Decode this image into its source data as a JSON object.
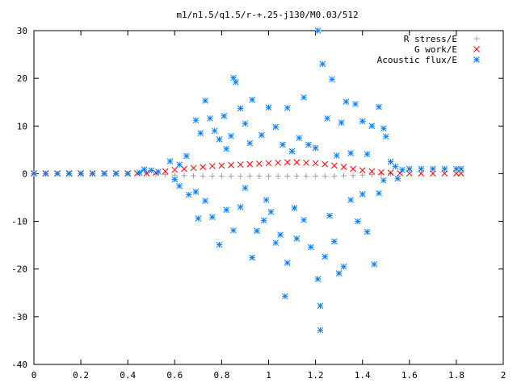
{
  "chart_data": {
    "type": "scatter",
    "title": "m1/n1.5/q1.5/r-+.25-j130/M0.03/512",
    "xlabel": "",
    "ylabel": "",
    "xlim": [
      0,
      2
    ],
    "ylim": [
      -40,
      30
    ],
    "xticks": [
      0,
      0.2,
      0.4,
      0.6,
      0.8,
      1,
      1.2,
      1.4,
      1.6,
      1.8,
      2
    ],
    "xtick_labels": [
      "0",
      "0.2",
      "0.4",
      "0.6",
      "0.8",
      "1",
      "1.2",
      "1.4",
      "1.6",
      "1.8",
      "2"
    ],
    "yticks": [
      -40,
      -30,
      -20,
      -10,
      0,
      10,
      20,
      30
    ],
    "ytick_labels": [
      "-40",
      "-30",
      "-20",
      "-10",
      "0",
      "10",
      "20",
      "30"
    ],
    "grid": false,
    "legend_position": "top-right",
    "series": [
      {
        "name": "R stress/E",
        "marker": "plus",
        "color": "#a0a0a0",
        "points": [
          [
            0.48,
            0.1
          ],
          [
            0.52,
            -0.1
          ],
          [
            0.56,
            -0.2
          ],
          [
            0.6,
            -0.3
          ],
          [
            0.64,
            -0.4
          ],
          [
            0.68,
            -0.45
          ],
          [
            0.72,
            -0.5
          ],
          [
            0.76,
            -0.5
          ],
          [
            0.8,
            -0.5
          ],
          [
            0.84,
            -0.5
          ],
          [
            0.88,
            -0.5
          ],
          [
            0.92,
            -0.5
          ],
          [
            0.96,
            -0.5
          ],
          [
            1.0,
            -0.5
          ],
          [
            1.04,
            -0.5
          ],
          [
            1.08,
            -0.5
          ],
          [
            1.12,
            -0.5
          ],
          [
            1.16,
            -0.5
          ],
          [
            1.2,
            -0.5
          ],
          [
            1.24,
            -0.5
          ],
          [
            1.28,
            -0.5
          ],
          [
            1.32,
            -0.45
          ],
          [
            1.36,
            -0.4
          ],
          [
            1.4,
            -0.3
          ],
          [
            1.44,
            -0.2
          ],
          [
            1.48,
            -0.1
          ],
          [
            1.52,
            0.0
          ]
        ]
      },
      {
        "name": "G work/E",
        "marker": "cross",
        "color": "#ff0000",
        "points": [
          [
            0.0,
            0.1
          ],
          [
            0.05,
            0.1
          ],
          [
            0.1,
            0.1
          ],
          [
            0.15,
            0.1
          ],
          [
            0.2,
            0.1
          ],
          [
            0.25,
            0.1
          ],
          [
            0.3,
            0.1
          ],
          [
            0.35,
            0.1
          ],
          [
            0.4,
            0.1
          ],
          [
            0.44,
            0.1
          ],
          [
            0.48,
            0.1
          ],
          [
            0.52,
            0.2
          ],
          [
            0.56,
            0.5
          ],
          [
            0.6,
            0.8
          ],
          [
            0.64,
            1.0
          ],
          [
            0.68,
            1.2
          ],
          [
            0.72,
            1.4
          ],
          [
            0.76,
            1.6
          ],
          [
            0.8,
            1.7
          ],
          [
            0.84,
            1.8
          ],
          [
            0.88,
            1.9
          ],
          [
            0.92,
            2.0
          ],
          [
            0.96,
            2.1
          ],
          [
            1.0,
            2.2
          ],
          [
            1.04,
            2.3
          ],
          [
            1.08,
            2.4
          ],
          [
            1.12,
            2.4
          ],
          [
            1.16,
            2.3
          ],
          [
            1.2,
            2.2
          ],
          [
            1.24,
            2.0
          ],
          [
            1.28,
            1.7
          ],
          [
            1.32,
            1.4
          ],
          [
            1.36,
            1.0
          ],
          [
            1.4,
            0.7
          ],
          [
            1.44,
            0.5
          ],
          [
            1.48,
            0.3
          ],
          [
            1.52,
            0.2
          ],
          [
            1.56,
            0.1
          ],
          [
            1.6,
            0.05
          ],
          [
            1.65,
            0.05
          ],
          [
            1.7,
            0.05
          ],
          [
            1.75,
            0.05
          ],
          [
            1.8,
            0.05
          ],
          [
            1.82,
            0.05
          ]
        ]
      },
      {
        "name": "Acoustic flux/E",
        "marker": "star",
        "color": "#0080ff",
        "points": [
          [
            0.0,
            0.0
          ],
          [
            0.05,
            0.0
          ],
          [
            0.1,
            0.0
          ],
          [
            0.15,
            0.0
          ],
          [
            0.2,
            0.0
          ],
          [
            0.25,
            0.0
          ],
          [
            0.3,
            0.0
          ],
          [
            0.35,
            0.0
          ],
          [
            0.4,
            0.0
          ],
          [
            0.45,
            0.2
          ],
          [
            0.47,
            0.9
          ],
          [
            0.5,
            0.7
          ],
          [
            0.53,
            0.4
          ],
          [
            0.58,
            2.6
          ],
          [
            0.62,
            1.9
          ],
          [
            0.65,
            3.7
          ],
          [
            0.6,
            -1.2
          ],
          [
            0.62,
            -2.6
          ],
          [
            0.66,
            -4.4
          ],
          [
            0.69,
            -3.8
          ],
          [
            0.71,
            8.5
          ],
          [
            0.75,
            11.6
          ],
          [
            0.79,
            7.2
          ],
          [
            0.82,
            5.2
          ],
          [
            0.85,
            20.1
          ],
          [
            0.86,
            19.2
          ],
          [
            0.88,
            13.7
          ],
          [
            0.9,
            10.5
          ],
          [
            0.92,
            6.4
          ],
          [
            0.93,
            15.5
          ],
          [
            0.97,
            8.1
          ],
          [
            0.69,
            11.2
          ],
          [
            0.73,
            15.3
          ],
          [
            0.77,
            9.0
          ],
          [
            0.81,
            12.1
          ],
          [
            0.84,
            7.9
          ],
          [
            0.7,
            -9.4
          ],
          [
            0.73,
            -5.7
          ],
          [
            0.76,
            -9.1
          ],
          [
            0.79,
            -14.9
          ],
          [
            0.82,
            -7.6
          ],
          [
            0.85,
            -11.9
          ],
          [
            0.88,
            -7.0
          ],
          [
            0.9,
            -3.0
          ],
          [
            0.93,
            -17.6
          ],
          [
            0.95,
            -12.0
          ],
          [
            0.98,
            -9.8
          ],
          [
            0.99,
            -5.5
          ],
          [
            1.01,
            -8.0
          ],
          [
            1.03,
            -14.5
          ],
          [
            1.05,
            -12.8
          ],
          [
            1.07,
            -25.7
          ],
          [
            1.08,
            -18.7
          ],
          [
            1.11,
            -7.2
          ],
          [
            1.12,
            -13.6
          ],
          [
            1.15,
            -9.7
          ],
          [
            1.18,
            -15.4
          ],
          [
            1.21,
            -22.1
          ],
          [
            1.22,
            -27.7
          ],
          [
            1.22,
            -32.8
          ],
          [
            1.24,
            -17.4
          ],
          [
            1.26,
            -8.8
          ],
          [
            1.28,
            -14.2
          ],
          [
            1.3,
            -20.9
          ],
          [
            1.32,
            -19.5
          ],
          [
            1.35,
            -5.5
          ],
          [
            1.38,
            -10.0
          ],
          [
            1.4,
            -4.3
          ],
          [
            1.42,
            -12.2
          ],
          [
            1.45,
            -19.0
          ],
          [
            1.47,
            -4.1
          ],
          [
            1.49,
            -1.4
          ],
          [
            1.0,
            13.9
          ],
          [
            1.03,
            9.8
          ],
          [
            1.06,
            6.1
          ],
          [
            1.08,
            13.8
          ],
          [
            1.1,
            4.7
          ],
          [
            1.13,
            7.5
          ],
          [
            1.15,
            16.0
          ],
          [
            1.17,
            6.1
          ],
          [
            1.2,
            5.4
          ],
          [
            1.21,
            30.0
          ],
          [
            1.23,
            23.0
          ],
          [
            1.25,
            11.6
          ],
          [
            1.27,
            19.8
          ],
          [
            1.29,
            3.8
          ],
          [
            1.31,
            10.7
          ],
          [
            1.33,
            15.1
          ],
          [
            1.35,
            4.3
          ],
          [
            1.37,
            14.6
          ],
          [
            1.4,
            11.0
          ],
          [
            1.42,
            4.1
          ],
          [
            1.44,
            10.0
          ],
          [
            1.47,
            14.0
          ],
          [
            1.49,
            9.5
          ],
          [
            1.5,
            7.8
          ],
          [
            1.52,
            2.5
          ],
          [
            1.54,
            1.5
          ],
          [
            1.55,
            -1.0
          ],
          [
            1.57,
            0.8
          ],
          [
            1.6,
            1.0
          ],
          [
            1.65,
            1.0
          ],
          [
            1.7,
            1.0
          ],
          [
            1.75,
            1.0
          ],
          [
            1.8,
            1.0
          ],
          [
            1.82,
            1.0
          ]
        ]
      }
    ]
  }
}
